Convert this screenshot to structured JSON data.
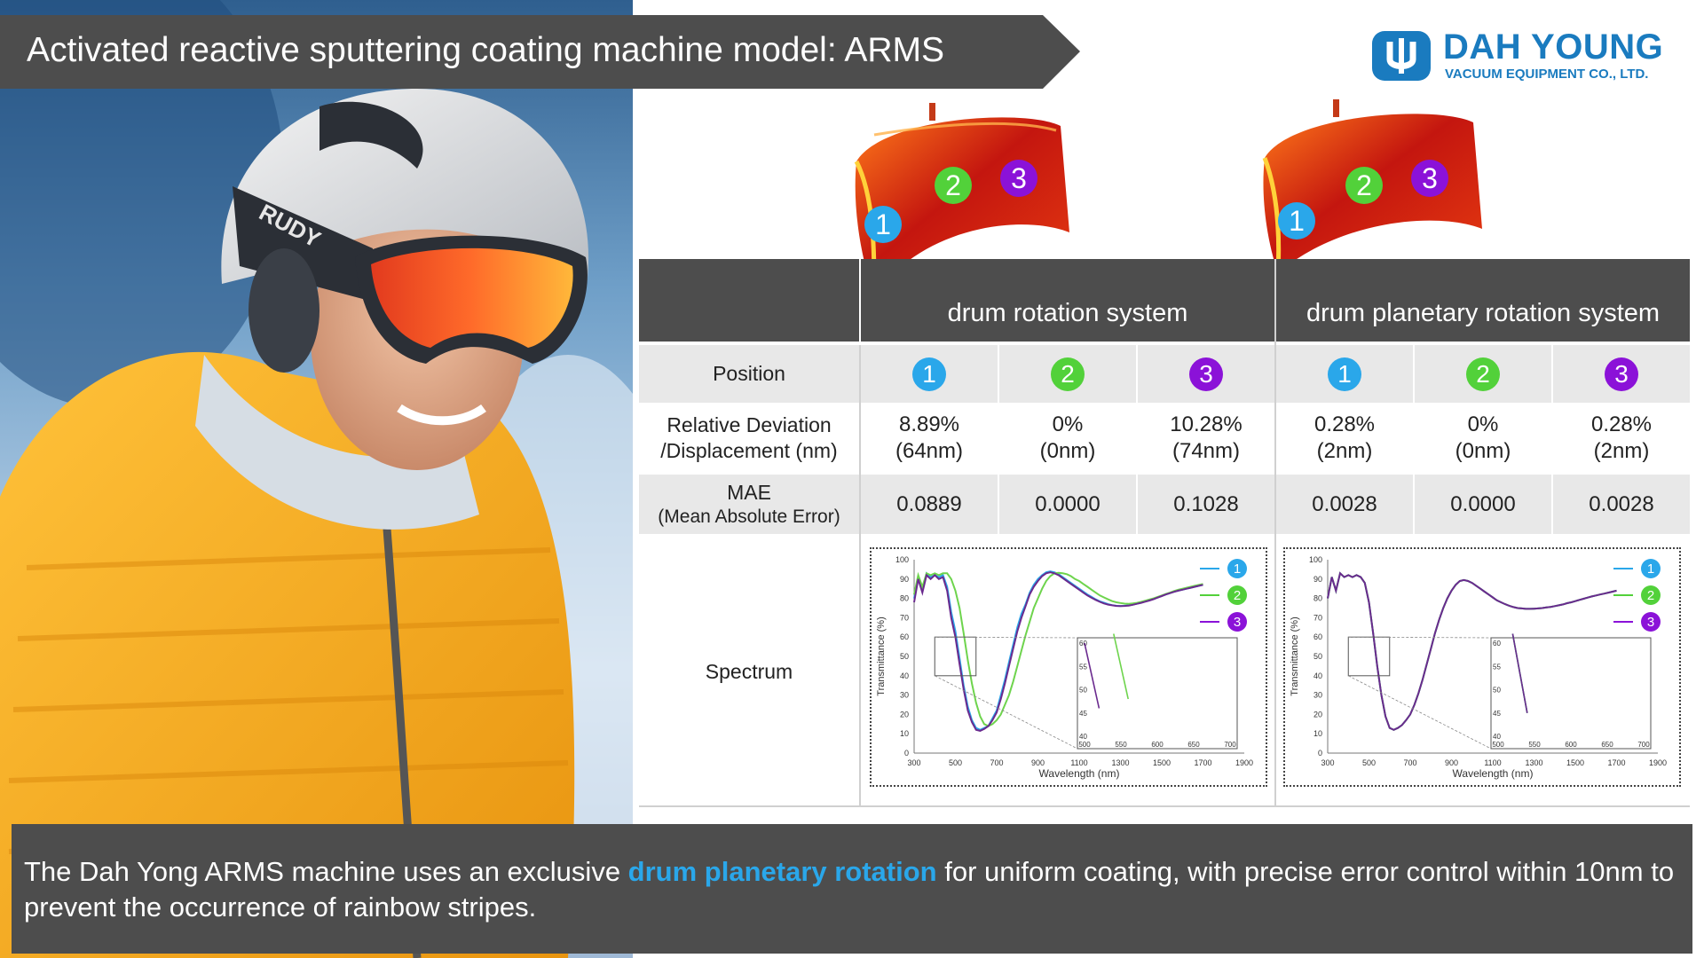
{
  "title": "Activated reactive sputtering coating machine model: ARMS",
  "logo": {
    "name": "DAH YOUNG",
    "subtitle": "VACUUM EQUIPMENT CO., LTD.",
    "color": "#1a7bbf"
  },
  "colors": {
    "position_1": "#2aa7ea",
    "position_2": "#52d13a",
    "position_3": "#8b12d8",
    "highlight": "#2aa7ea",
    "dark_bar": "#4d4d4d"
  },
  "table": {
    "systems": [
      "drum rotation system",
      "drum planetary rotation system"
    ],
    "rows": {
      "position": {
        "label": "Position",
        "values": [
          "1",
          "2",
          "3",
          "1",
          "2",
          "3"
        ]
      },
      "deviation": {
        "label_line1": "Relative Deviation",
        "label_line2": "/Displacement (nm)",
        "values": [
          [
            "8.89%",
            "(64nm)"
          ],
          [
            "0%",
            "(0nm)"
          ],
          [
            "10.28%",
            "(74nm)"
          ],
          [
            "0.28%",
            "(2nm)"
          ],
          [
            "0%",
            "(0nm)"
          ],
          [
            "0.28%",
            "(2nm)"
          ]
        ]
      },
      "mae": {
        "label_line1": "MAE",
        "label_line2": "(Mean Absolute Error)",
        "values": [
          "0.0889",
          "0.0000",
          "0.1028",
          "0.0028",
          "0.0000",
          "0.0028"
        ]
      },
      "spectrum": {
        "label": "Spectrum"
      }
    }
  },
  "spectrum_axes": {
    "ylabel": "Transmittance (%)",
    "xlabel": "Wavelength (nm)",
    "y_ticks": [
      "100",
      "90",
      "80",
      "70",
      "60",
      "50",
      "40",
      "30",
      "20",
      "10",
      "0"
    ],
    "x_ticks": [
      "300",
      "500",
      "700",
      "900",
      "1100",
      "1300",
      "1500",
      "1700",
      "1900"
    ],
    "inset_y_ticks": [
      "60",
      "55",
      "50",
      "45",
      "40"
    ],
    "inset_x_ticks": [
      "500",
      "550",
      "600",
      "650",
      "700"
    ],
    "legend": [
      "1",
      "2",
      "3"
    ]
  },
  "chart_data": [
    {
      "type": "line",
      "xlabel": "Wavelength (nm)",
      "ylabel": "Transmittance (%)",
      "xlim": [
        300,
        1900
      ],
      "ylim": [
        0,
        100
      ],
      "series": [
        {
          "name": "1",
          "color": "#2aa7ea",
          "x": [
            300,
            320,
            340,
            360,
            380,
            400,
            420,
            440,
            460,
            480,
            500,
            520,
            540,
            560,
            580,
            600,
            620,
            640,
            660,
            680,
            700,
            720,
            740,
            760,
            780,
            800,
            820,
            840,
            860,
            880,
            900,
            920,
            940,
            960,
            980,
            1000,
            1020,
            1040,
            1060,
            1080,
            1100,
            1120,
            1140,
            1160,
            1180,
            1200,
            1220,
            1240,
            1260,
            1280,
            1300,
            1320,
            1340,
            1360,
            1380,
            1400,
            1420,
            1440,
            1460,
            1480,
            1500,
            1520,
            1540,
            1560,
            1580,
            1600,
            1620,
            1640,
            1660,
            1680,
            1700
          ],
          "y": [
            80,
            91,
            84,
            93,
            91,
            92,
            91,
            92,
            86,
            73,
            63,
            49,
            35,
            24,
            17,
            13,
            12,
            13,
            14,
            18,
            22,
            30,
            38,
            47,
            56,
            65,
            72,
            77,
            83,
            87,
            90,
            92,
            93.5,
            94,
            93.5,
            92.5,
            91,
            89.5,
            88,
            86.5,
            85,
            83.5,
            82,
            80.8,
            79.5,
            78.5,
            77.8,
            77,
            76.5,
            76.2,
            76,
            76.2,
            76.4,
            76.8,
            77.3,
            77.8,
            78.4,
            79,
            79.8,
            80.5,
            81.3,
            82,
            82.8,
            83.5,
            84,
            84.5,
            85,
            85.5,
            86,
            86.5,
            87
          ]
        },
        {
          "name": "2",
          "color": "#6ed44d",
          "x": [
            300,
            320,
            340,
            360,
            380,
            400,
            420,
            440,
            460,
            480,
            500,
            520,
            540,
            560,
            580,
            600,
            620,
            640,
            660,
            680,
            700,
            720,
            740,
            760,
            780,
            800,
            820,
            840,
            860,
            880,
            900,
            920,
            940,
            960,
            980,
            1000,
            1020,
            1040,
            1060,
            1080,
            1100,
            1120,
            1140,
            1160,
            1180,
            1200,
            1220,
            1240,
            1260,
            1280,
            1300,
            1320,
            1340,
            1360,
            1380,
            1400,
            1420,
            1440,
            1460,
            1480,
            1500,
            1520,
            1540,
            1560,
            1580,
            1600,
            1620,
            1640,
            1660,
            1680,
            1700
          ],
          "y": [
            82,
            92,
            86,
            93,
            92,
            93,
            92,
            93,
            93,
            90,
            84,
            75,
            62,
            48,
            36,
            26,
            19,
            15,
            14,
            15,
            17,
            20,
            25,
            30,
            37,
            45,
            53,
            61,
            68,
            75,
            80,
            85,
            89,
            91.5,
            93,
            93.2,
            93,
            92.5,
            91.5,
            90,
            89,
            87.5,
            86,
            84.5,
            83,
            81.5,
            80.5,
            79.5,
            78.6,
            78,
            77.6,
            77.3,
            77.2,
            77.4,
            77.7,
            78.2,
            78.8,
            79.4,
            80,
            80.8,
            81.5,
            82.3,
            83,
            83.8,
            84.5,
            85,
            85.5,
            86,
            86.5,
            87,
            87.5
          ]
        },
        {
          "name": "3",
          "color": "#6a2a8e",
          "x": [
            300,
            320,
            340,
            360,
            380,
            400,
            420,
            440,
            460,
            480,
            500,
            520,
            540,
            560,
            580,
            600,
            620,
            640,
            660,
            680,
            700,
            720,
            740,
            760,
            780,
            800,
            820,
            840,
            860,
            880,
            900,
            920,
            940,
            960,
            980,
            1000,
            1020,
            1040,
            1060,
            1080,
            1100,
            1120,
            1140,
            1160,
            1180,
            1200,
            1220,
            1240,
            1260,
            1280,
            1300,
            1320,
            1340,
            1360,
            1380,
            1400,
            1420,
            1440,
            1460,
            1480,
            1500,
            1520,
            1540,
            1560,
            1580,
            1600,
            1620,
            1640,
            1660,
            1680,
            1700
          ],
          "y": [
            78,
            90,
            83,
            92,
            90,
            92,
            90,
            91,
            84,
            70,
            60,
            46,
            33,
            22,
            16,
            12,
            11.5,
            12.5,
            14,
            17,
            21,
            28,
            36,
            45,
            54,
            63,
            70,
            76,
            82,
            86,
            89,
            91.5,
            93,
            93.5,
            93,
            92,
            90.5,
            89,
            87.5,
            86,
            84.5,
            83,
            81.5,
            80.3,
            79.2,
            78.2,
            77.4,
            76.8,
            76.4,
            76.1,
            76,
            76.1,
            76.3,
            76.7,
            77.2,
            77.7,
            78.3,
            78.9,
            79.6,
            80.4,
            81.2,
            82,
            82.7,
            83.4,
            84,
            84.5,
            85,
            85.5,
            86,
            86.5,
            87
          ]
        }
      ]
    },
    {
      "type": "line",
      "xlabel": "Wavelength (nm)",
      "ylabel": "Transmittance (%)",
      "xlim": [
        300,
        1900
      ],
      "ylim": [
        0,
        100
      ],
      "series": [
        {
          "name": "1",
          "color": "#2aa7ea",
          "x": [
            300,
            320,
            340,
            360,
            380,
            400,
            420,
            440,
            460,
            480,
            500,
            520,
            540,
            560,
            580,
            600,
            620,
            640,
            660,
            680,
            700,
            720,
            740,
            760,
            780,
            800,
            820,
            840,
            860,
            880,
            900,
            920,
            940,
            960,
            980,
            1000,
            1020,
            1040,
            1060,
            1080,
            1100,
            1120,
            1140,
            1160,
            1180,
            1200,
            1220,
            1240,
            1260,
            1280,
            1300,
            1320,
            1340,
            1360,
            1380,
            1400,
            1420,
            1440,
            1460,
            1480,
            1500,
            1520,
            1540,
            1560,
            1580,
            1600,
            1620,
            1640,
            1660,
            1680,
            1700
          ],
          "y": [
            80,
            91,
            84,
            93,
            91,
            92,
            91,
            92,
            91,
            88,
            78,
            62,
            45,
            30,
            19,
            13,
            12,
            13,
            14.5,
            17,
            20,
            25,
            31,
            38,
            46,
            54,
            62,
            69,
            75,
            80,
            84,
            87,
            89,
            89.5,
            89,
            88,
            86.5,
            85,
            83.5,
            82,
            80.5,
            79,
            78,
            77,
            76.2,
            75.5,
            75,
            74.8,
            74.6,
            74.6,
            74.7,
            74.8,
            75,
            75.3,
            75.6,
            76,
            76.4,
            76.9,
            77.5,
            78,
            78.6,
            79.2,
            79.8,
            80.4,
            81,
            81.5,
            82,
            82.5,
            83,
            83.5,
            84
          ]
        },
        {
          "name": "2",
          "color": "#6ed44d",
          "x": [
            300,
            320,
            340,
            360,
            380,
            400,
            420,
            440,
            460,
            480,
            500,
            520,
            540,
            560,
            580,
            600,
            620,
            640,
            660,
            680,
            700,
            720,
            740,
            760,
            780,
            800,
            820,
            840,
            860,
            880,
            900,
            920,
            940,
            960,
            980,
            1000,
            1020,
            1040,
            1060,
            1080,
            1100,
            1120,
            1140,
            1160,
            1180,
            1200,
            1220,
            1240,
            1260,
            1280,
            1300,
            1320,
            1340,
            1360,
            1380,
            1400,
            1420,
            1440,
            1460,
            1480,
            1500,
            1520,
            1540,
            1560,
            1580,
            1600,
            1620,
            1640,
            1660,
            1680,
            1700
          ],
          "y": [
            80,
            91,
            84,
            93,
            91,
            92,
            91,
            92,
            91,
            88,
            78,
            62,
            45,
            30,
            19,
            13,
            12,
            13,
            14.5,
            17,
            20,
            25,
            31,
            38,
            46,
            54,
            62,
            69,
            75,
            80,
            84,
            87,
            89,
            89.5,
            89,
            88,
            86.5,
            85,
            83.5,
            82,
            80.5,
            79,
            78,
            77,
            76.2,
            75.5,
            75,
            74.8,
            74.6,
            74.6,
            74.7,
            74.8,
            75,
            75.3,
            75.6,
            76,
            76.4,
            76.9,
            77.5,
            78,
            78.6,
            79.2,
            79.8,
            80.4,
            81,
            81.5,
            82,
            82.5,
            83,
            83.5,
            84
          ]
        },
        {
          "name": "3",
          "color": "#6a2a8e",
          "x": [
            300,
            320,
            340,
            360,
            380,
            400,
            420,
            440,
            460,
            480,
            500,
            520,
            540,
            560,
            580,
            600,
            620,
            640,
            660,
            680,
            700,
            720,
            740,
            760,
            780,
            800,
            820,
            840,
            860,
            880,
            900,
            920,
            940,
            960,
            980,
            1000,
            1020,
            1040,
            1060,
            1080,
            1100,
            1120,
            1140,
            1160,
            1180,
            1200,
            1220,
            1240,
            1260,
            1280,
            1300,
            1320,
            1340,
            1360,
            1380,
            1400,
            1420,
            1440,
            1460,
            1480,
            1500,
            1520,
            1540,
            1560,
            1580,
            1600,
            1620,
            1640,
            1660,
            1680,
            1700
          ],
          "y": [
            80,
            91,
            84,
            93,
            91,
            92,
            91,
            92,
            91,
            88,
            78,
            62,
            45,
            30,
            19,
            13,
            12,
            13,
            14.5,
            17,
            20,
            25,
            31,
            38,
            46,
            54,
            62,
            69,
            75,
            80,
            84,
            87,
            89,
            89.5,
            89,
            88,
            86.5,
            85,
            83.5,
            82,
            80.5,
            79,
            78,
            77,
            76.2,
            75.5,
            75,
            74.8,
            74.6,
            74.6,
            74.7,
            74.8,
            75,
            75.3,
            75.6,
            76,
            76.4,
            76.9,
            77.5,
            78,
            78.6,
            79.2,
            79.8,
            80.4,
            81,
            81.5,
            82,
            82.5,
            83,
            83.5,
            84
          ]
        }
      ]
    }
  ],
  "caption": {
    "part1": "The Dah Yong ARMS machine uses an exclusive ",
    "highlight": "drum planetary rotation",
    "part2": " for uniform coating, with precise error control within 10nm to prevent the occurrence of rainbow stripes."
  }
}
